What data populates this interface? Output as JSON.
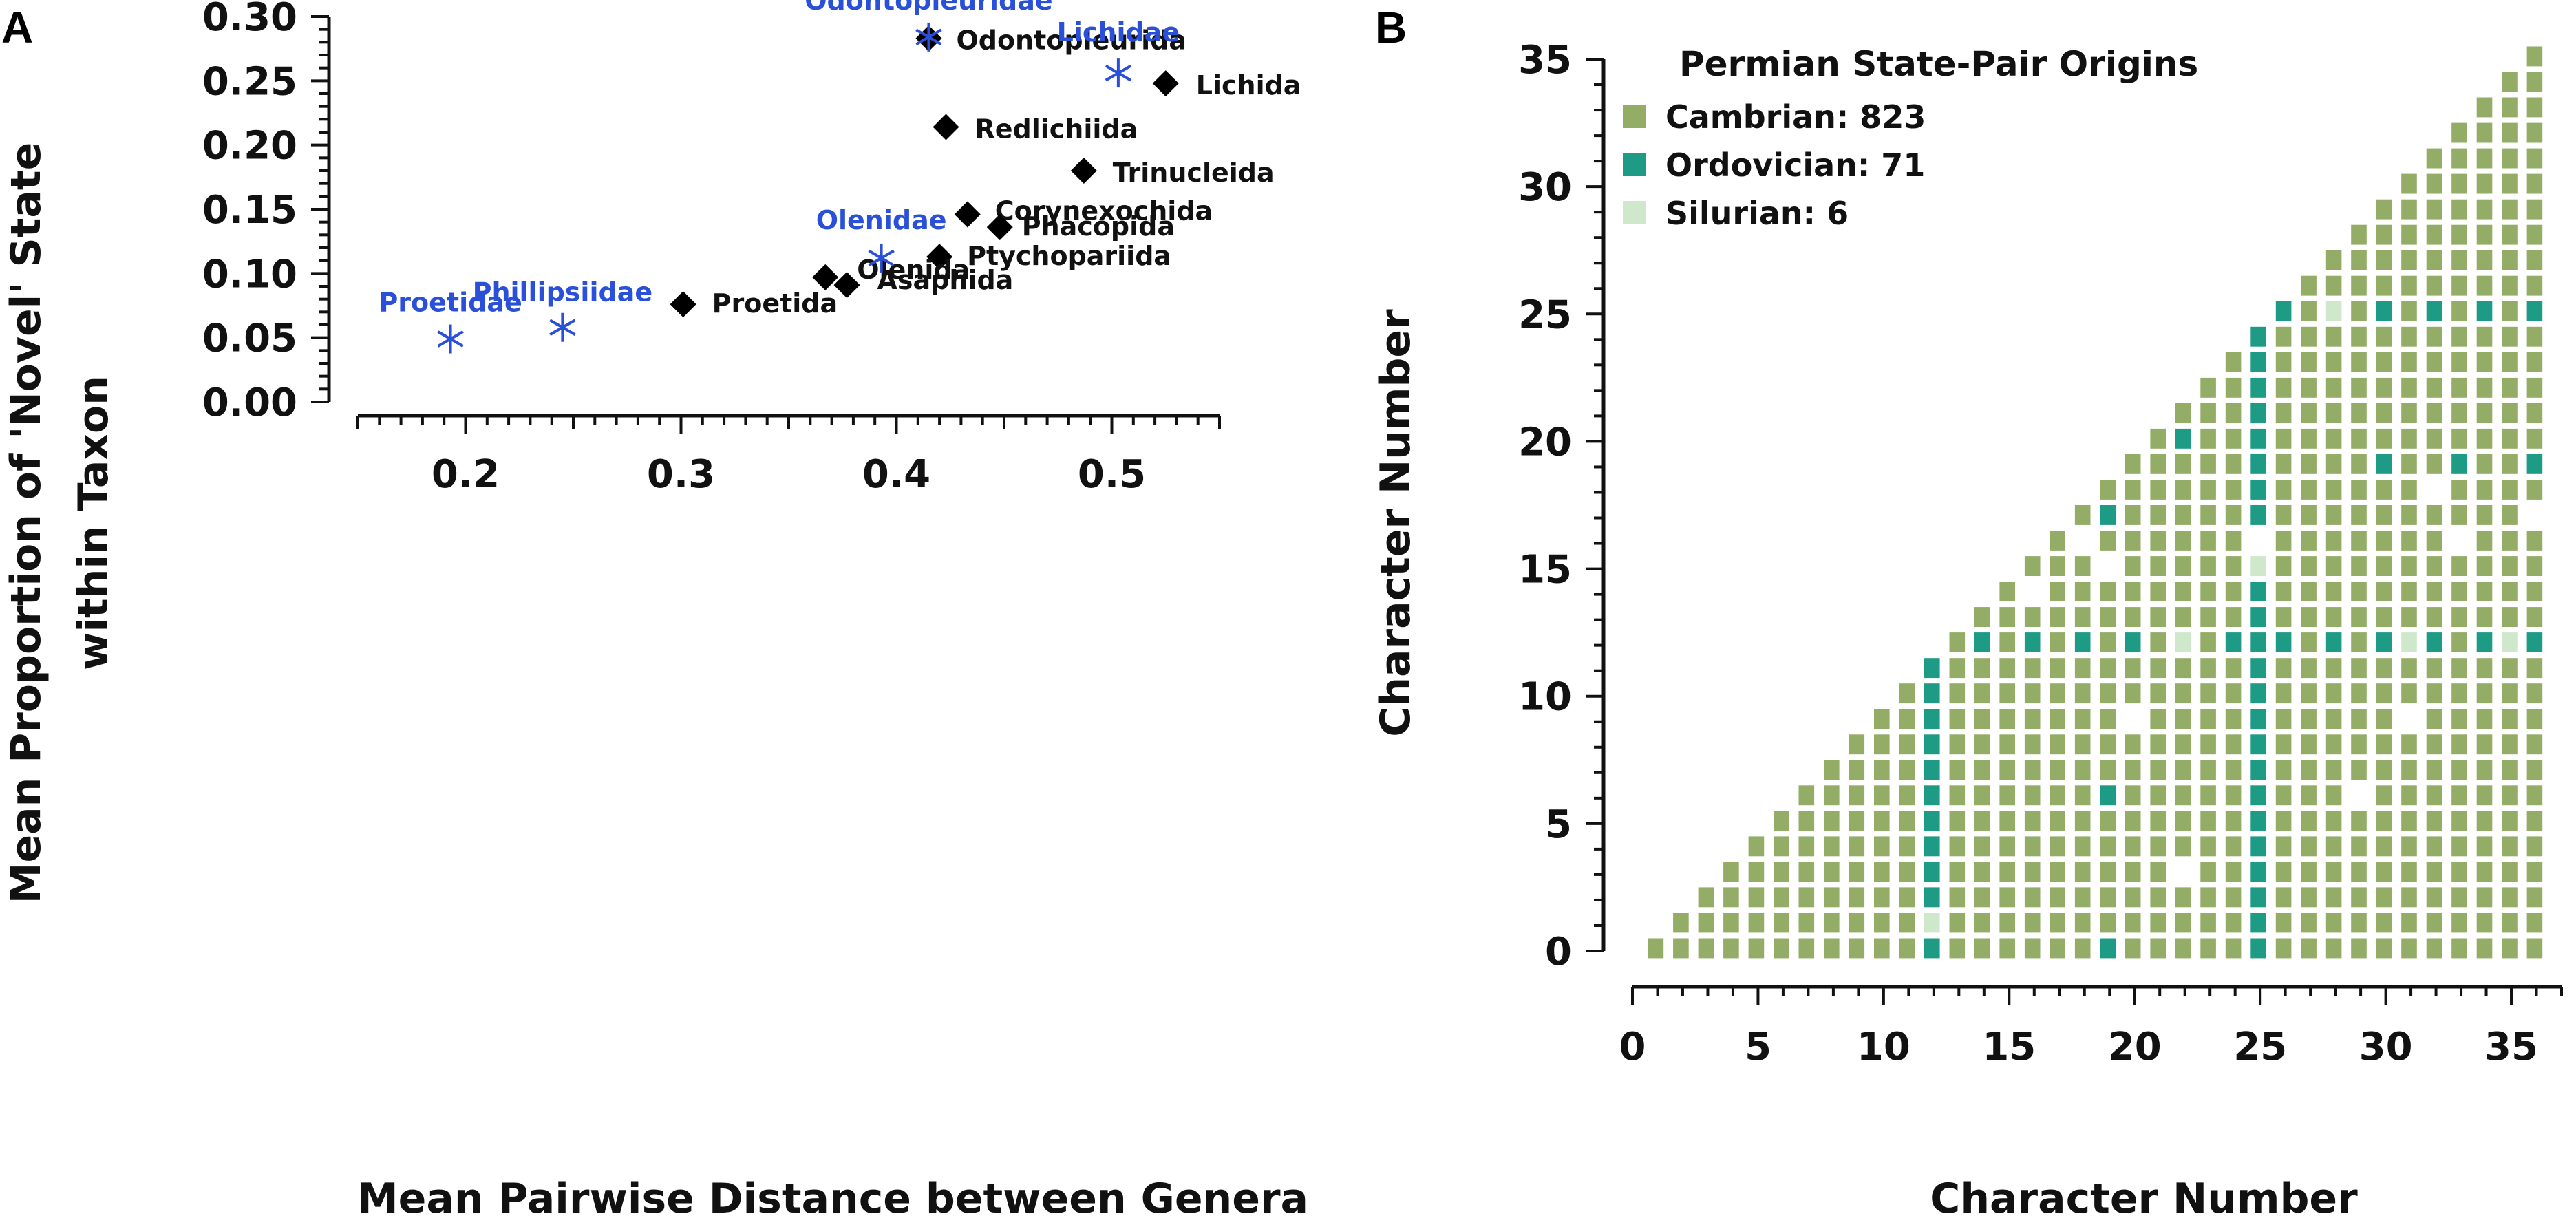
{
  "colors": {
    "order": "#000000",
    "family": "#2a4fd8",
    "cambrian": "#93ad67",
    "ordovician": "#1e9b85",
    "silurian": "#cfe8cc",
    "axis": "#111111"
  },
  "chart_data": [
    {
      "panel": "A",
      "type": "scatter",
      "xlabel": "Mean Pairwise Distance between Genera",
      "ylabel_line1": "Mean Proportion of 'Novel' State",
      "ylabel_line2": "within Taxon",
      "xlim": [
        0.15,
        0.55
      ],
      "ylim": [
        0.0,
        0.3
      ],
      "xticks": [
        "0.2",
        "0.3",
        "0.4",
        "0.5"
      ],
      "yticks": [
        "0.00",
        "0.05",
        "0.10",
        "0.15",
        "0.20",
        "0.25",
        "0.30"
      ],
      "series": [
        {
          "name": "Orders",
          "marker": "diamond",
          "points": [
            {
              "label": "Odontopleurida",
              "x": 0.415,
              "y": 0.283
            },
            {
              "label": "Lichida",
              "x": 0.525,
              "y": 0.248
            },
            {
              "label": "Redlichiida",
              "x": 0.423,
              "y": 0.214
            },
            {
              "label": "Trinucleida",
              "x": 0.487,
              "y": 0.18
            },
            {
              "label": "Corynexochida",
              "x": 0.433,
              "y": 0.146
            },
            {
              "label": "Phacopida",
              "x": 0.448,
              "y": 0.136
            },
            {
              "label": "Ptychopariida",
              "x": 0.42,
              "y": 0.113
            },
            {
              "label": "Olenida",
              "x": 0.367,
              "y": 0.097
            },
            {
              "label": "Asaphida",
              "x": 0.377,
              "y": 0.091
            },
            {
              "label": "Proetida",
              "x": 0.301,
              "y": 0.076
            }
          ]
        },
        {
          "name": "Families",
          "marker": "asterisk",
          "points": [
            {
              "label": "Odontopleuridae",
              "x": 0.415,
              "y": 0.284
            },
            {
              "label": "Lichidae",
              "x": 0.503,
              "y": 0.256
            },
            {
              "label": "Olenidae",
              "x": 0.393,
              "y": 0.112
            },
            {
              "label": "Phillipsiidae",
              "x": 0.245,
              "y": 0.058
            },
            {
              "label": "Proetidae",
              "x": 0.193,
              "y": 0.049
            }
          ]
        }
      ]
    },
    {
      "panel": "B",
      "type": "heatmap",
      "xlabel": "Character Number",
      "ylabel": "Character Number",
      "xlim": [
        0,
        37
      ],
      "ylim": [
        0,
        37
      ],
      "xticks": [
        "0",
        "5",
        "10",
        "15",
        "20",
        "25",
        "30",
        "35"
      ],
      "yticks": [
        "0",
        "5",
        "10",
        "15",
        "20",
        "25",
        "30",
        "35"
      ],
      "n_characters": 36,
      "legend": {
        "title": "Permian State-Pair Origins",
        "entries": [
          {
            "name": "Cambrian",
            "count": 823,
            "label": "Cambrian: 823"
          },
          {
            "name": "Ordovician",
            "count": 71,
            "label": "Ordovician: 71"
          },
          {
            "name": "Silurian",
            "count": 6,
            "label": "Silurian: 6"
          }
        ]
      },
      "ordovician_columns": [
        12,
        25
      ],
      "ordovician_rows": [
        12,
        25
      ],
      "ordovician_cells": [
        [
          19,
          17
        ],
        [
          19,
          6
        ],
        [
          19,
          0
        ],
        [
          22,
          20
        ],
        [
          30,
          19
        ],
        [
          33,
          19
        ],
        [
          36,
          19
        ]
      ],
      "silurian_cells": [
        [
          12,
          1
        ],
        [
          25,
          15
        ],
        [
          22,
          12
        ],
        [
          31,
          12
        ],
        [
          35,
          12
        ],
        [
          28,
          25
        ]
      ],
      "blank_cells": [
        [
          18,
          16
        ],
        [
          19,
          15
        ],
        [
          25,
          16
        ],
        [
          32,
          18
        ],
        [
          33,
          16
        ],
        [
          36,
          17
        ],
        [
          20,
          9
        ],
        [
          22,
          3
        ],
        [
          29,
          6
        ],
        [
          31,
          9
        ],
        [
          16,
          14
        ]
      ]
    }
  ]
}
